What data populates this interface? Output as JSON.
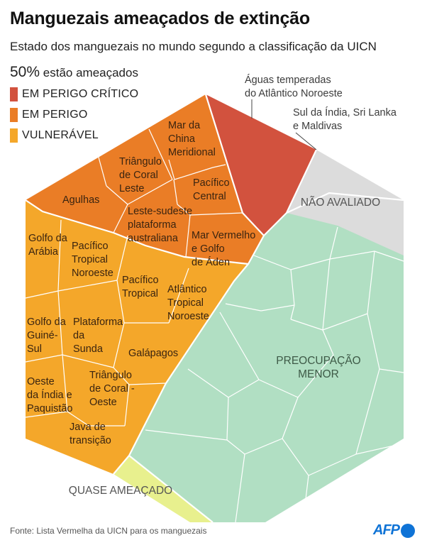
{
  "header": {
    "title": "Manguezais ameaçados de extinção",
    "subtitle": "Estado dos manguezais no mundo segundo a classificação da UICN",
    "threat_pct": "50%",
    "threat_text": "estão ameaçados"
  },
  "legend": [
    {
      "label": "EM PERIGO CRÍTICO",
      "color": "#d2523e"
    },
    {
      "label": "EM PERIGO",
      "color": "#ea7d26"
    },
    {
      "label": "VULNERÁVEL",
      "color": "#f4a72a"
    }
  ],
  "chart_data": {
    "type": "voronoi-treemap",
    "title": "Manguezais ameaçados de extinção",
    "categories": [
      {
        "key": "critical",
        "label": "EM PERIGO CRÍTICO",
        "color": "#d2523e",
        "count": 1
      },
      {
        "key": "endangered",
        "label": "EM PERIGO",
        "color": "#ea7d26",
        "count": 7
      },
      {
        "key": "vulnerable",
        "label": "VULNERÁVEL",
        "color": "#f4a72a",
        "count": 10
      },
      {
        "key": "near",
        "label": "QUASE AMEAÇADO",
        "color": "#e8f08e",
        "count": 1
      },
      {
        "key": "least",
        "label": "PREOCUPAÇÃO MENOR",
        "color": "#b1dfc3",
        "count": 15
      },
      {
        "key": "notassessed",
        "label": "NÃO AVALIADO",
        "color": "#dcdcdc",
        "count": 2
      }
    ],
    "regions": [
      {
        "name": "Águas temperadas do Atlântico Noroeste",
        "status": "critical"
      },
      {
        "name": "Mar da China Meridional",
        "status": "endangered"
      },
      {
        "name": "Triângulo de Coral Leste",
        "status": "endangered"
      },
      {
        "name": "Pacífico Central",
        "status": "endangered"
      },
      {
        "name": "Agulhas",
        "status": "endangered"
      },
      {
        "name": "Leste-sudeste plataforma australiana",
        "status": "endangered"
      },
      {
        "name": "Mar Vermelho e Golfo de Áden",
        "status": "endangered"
      },
      {
        "name": "Golfo da Arábia",
        "status": "vulnerable"
      },
      {
        "name": "Pacífico Tropical Noroeste",
        "status": "vulnerable"
      },
      {
        "name": "Pacífico Tropical",
        "status": "vulnerable"
      },
      {
        "name": "Atlântico Tropical Noroeste",
        "status": "vulnerable"
      },
      {
        "name": "Golfo da Guiné-Sul",
        "status": "vulnerable"
      },
      {
        "name": "Plataforma da Sunda",
        "status": "vulnerable"
      },
      {
        "name": "Galápagos",
        "status": "vulnerable"
      },
      {
        "name": "Oeste da Índia e Paquistão",
        "status": "vulnerable"
      },
      {
        "name": "Triângulo de Coral - Oeste",
        "status": "vulnerable"
      },
      {
        "name": "Java de transição",
        "status": "vulnerable"
      },
      {
        "name": "Sul da Índia, Sri Lanka e Maldivas",
        "status": "notassessed"
      }
    ],
    "annotations": {
      "critical": "Águas temperadas do Atlântico Noroeste",
      "notassessed": "Sul da Índia, Sri Lanka e Maldivas"
    },
    "category_labels": {
      "notassessed": "NÃO AVALIADO",
      "least": "PREOCUPAÇÃO MENOR",
      "near": "QUASE AMEAÇADO"
    }
  },
  "cell_labels": {
    "mar_china": "Mar da|China|Meridional",
    "triangulo_leste": "Triângulo|de Coral|Leste",
    "pacifico_central": "Pacífico|Central",
    "agulhas": "Agulhas",
    "leste_sudeste": "Leste-sudeste|plataforma|australiana",
    "mar_vermelho": "Mar Vermelho|e Golfo|de Áden",
    "golfo_arabia": "Golfo da|Arábia",
    "pac_trop_noroeste": "Pacífico|Tropical|Noroeste",
    "pac_tropical": "Pacífico|Tropical",
    "atl_trop_noroeste": "Atlântico|Tropical|Noroeste",
    "golfo_guine": "Golfo da|Guiné-|Sul",
    "sunda": "Plataforma|da|Sunda",
    "galapagos": "Galápagos",
    "oeste_india": "Oeste|da Índia e|Paquistão",
    "triangulo_oeste": "Triângulo|de Coral -|Oeste",
    "java": "Java de|transição",
    "annot_critical": "Águas temperadas|do Atlântico Noroeste",
    "annot_notassessed": "Sul da Índia, Sri Lanka|e Maldivas",
    "cat_notassessed": "NÃO AVALIADO",
    "cat_least": "PREOCUPAÇÃO|MENOR",
    "cat_near": "QUASE AMEAÇADO"
  },
  "footer": {
    "source": "Fonte: Lista Vermelha da UICN para os manguezais",
    "brand": "AFP"
  }
}
